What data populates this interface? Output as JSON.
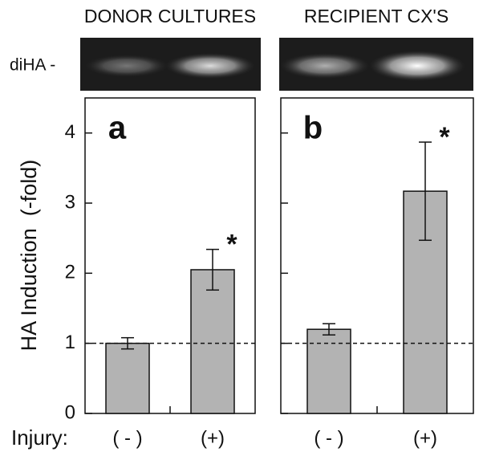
{
  "chart_data": [
    {
      "type": "bar",
      "title": "DONOR CULTURES",
      "gel_label": "diHA -",
      "panel_label": "a",
      "ylabel": "HA Induction  (-fold)",
      "xlabel": "Injury:",
      "categories": [
        "( - )",
        "(+)"
      ],
      "series": [
        {
          "color": "#b3b3b3",
          "values": [
            1.0,
            2.05
          ],
          "errors": [
            0.08,
            0.29
          ]
        }
      ],
      "significance": [
        null,
        "*"
      ],
      "reference_line": 1,
      "ylim": [
        0,
        4.5
      ],
      "yticks": [
        0,
        1,
        2,
        3,
        4
      ],
      "ytick_labels": true
    },
    {
      "type": "bar",
      "title": "RECIPIENT CX'S",
      "panel_label": "b",
      "categories": [
        "( - )",
        "(+)"
      ],
      "series": [
        {
          "color": "#b3b3b3",
          "values": [
            1.2,
            3.17
          ],
          "errors": [
            0.08,
            0.7
          ]
        }
      ],
      "significance": [
        null,
        "*"
      ],
      "reference_line": 1,
      "ylim": [
        0,
        4.5
      ],
      "yticks": [
        0,
        1,
        2,
        3,
        4
      ],
      "ytick_labels": false
    }
  ]
}
